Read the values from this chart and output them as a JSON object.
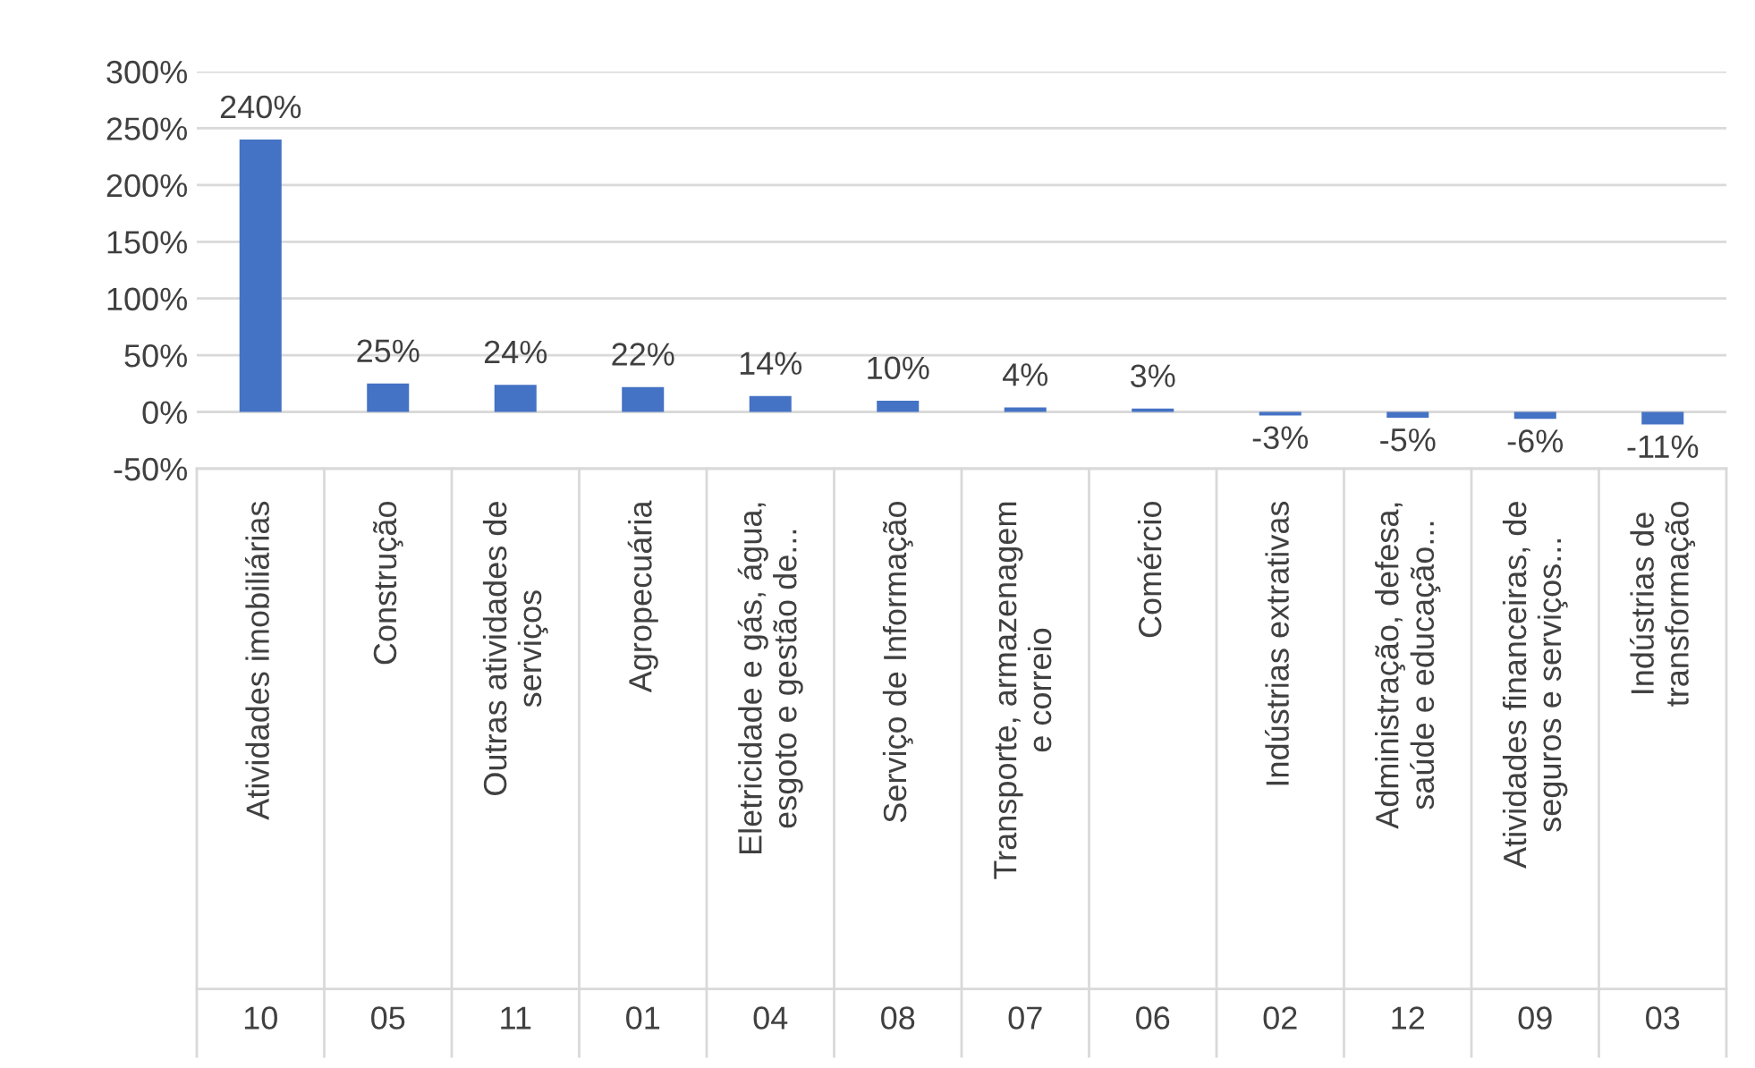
{
  "chart_data": {
    "type": "bar",
    "categories": [
      "Atividades imobiliárias",
      "Construção",
      "Outras atividades de\nserviços",
      "Agropecuária",
      "Eletricidade e gás, água,\nesgoto e gestão de...",
      "Serviço de Informação",
      "Transporte, armazenagem\ne correio",
      "Comércio",
      "Indústrias extrativas",
      "Administração, defesa,\nsaúde e educação...",
      "Atividades financeiras, de\nseguros e serviços...",
      "Indústrias de\ntransformação"
    ],
    "values": [
      240,
      25,
      24,
      22,
      14,
      10,
      4,
      3,
      -3,
      -5,
      -6,
      -11
    ],
    "value_labels": [
      "240%",
      "25%",
      "24%",
      "22%",
      "14%",
      "10%",
      "4%",
      "3%",
      "-3%",
      "-5%",
      "-6%",
      "-11%"
    ],
    "color": "#4472c4",
    "ylim": [
      -50,
      300
    ],
    "yticks": [
      {
        "value": -50,
        "label": "-50%"
      },
      {
        "value": 0,
        "label": "0%"
      },
      {
        "value": 50,
        "label": "50%"
      },
      {
        "value": 100,
        "label": "100%"
      },
      {
        "value": 150,
        "label": "150%"
      },
      {
        "value": 200,
        "label": "200%"
      },
      {
        "value": 250,
        "label": "250%"
      },
      {
        "value": 300,
        "label": "300%"
      }
    ],
    "grid": "y",
    "annotations": [
      "10",
      "05",
      "11",
      "01",
      "04",
      "08",
      "07",
      "06",
      "02",
      "12",
      "09",
      "03"
    ]
  }
}
